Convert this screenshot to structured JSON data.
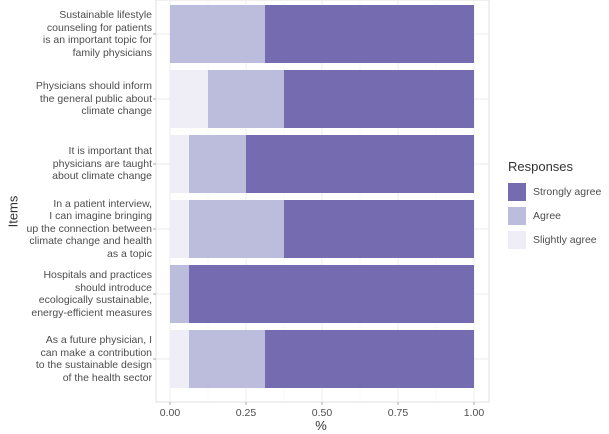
{
  "chart_data": {
    "type": "bar",
    "orientation": "horizontal",
    "stacked": true,
    "xlabel": "%",
    "ylabel": "Items",
    "xlim": [
      0,
      1
    ],
    "xticks": [
      "0.00",
      "0.25",
      "0.50",
      "0.75",
      "1.00"
    ],
    "grid": true,
    "legend_title": "Responses",
    "legend_position": "right",
    "categories": [
      "Sustainable lifestyle\ncounseling for patients\nis an important topic for\nfamily physicians",
      "Physicians should inform\nthe general public about\nclimate change",
      "It is important that\nphysicians are taught\nabout climate change",
      "In a patient interview,\nI can imagine bringing\nup the connection between\nclimate change and health\nas a topic",
      "Hospitals and practices\nshould introduce\necologically sustainable,\nenergy-efficient measures",
      "As a future physician, I\ncan make a contribution\nto the sustainable design\nof the health sector"
    ],
    "series": [
      {
        "name": "Slightly agree",
        "color": "#efedf5",
        "values": [
          0.0,
          0.125,
          0.0625,
          0.0625,
          0.0,
          0.0625
        ]
      },
      {
        "name": "Agree",
        "color": "#bcbddc",
        "values": [
          0.3125,
          0.25,
          0.1875,
          0.3125,
          0.0625,
          0.25
        ]
      },
      {
        "name": "Strongly agree",
        "color": "#756bb1",
        "values": [
          0.6875,
          0.625,
          0.75,
          0.625,
          0.9375,
          0.6875
        ]
      }
    ],
    "legend_order": [
      "Strongly agree",
      "Agree",
      "Slightly agree"
    ]
  }
}
